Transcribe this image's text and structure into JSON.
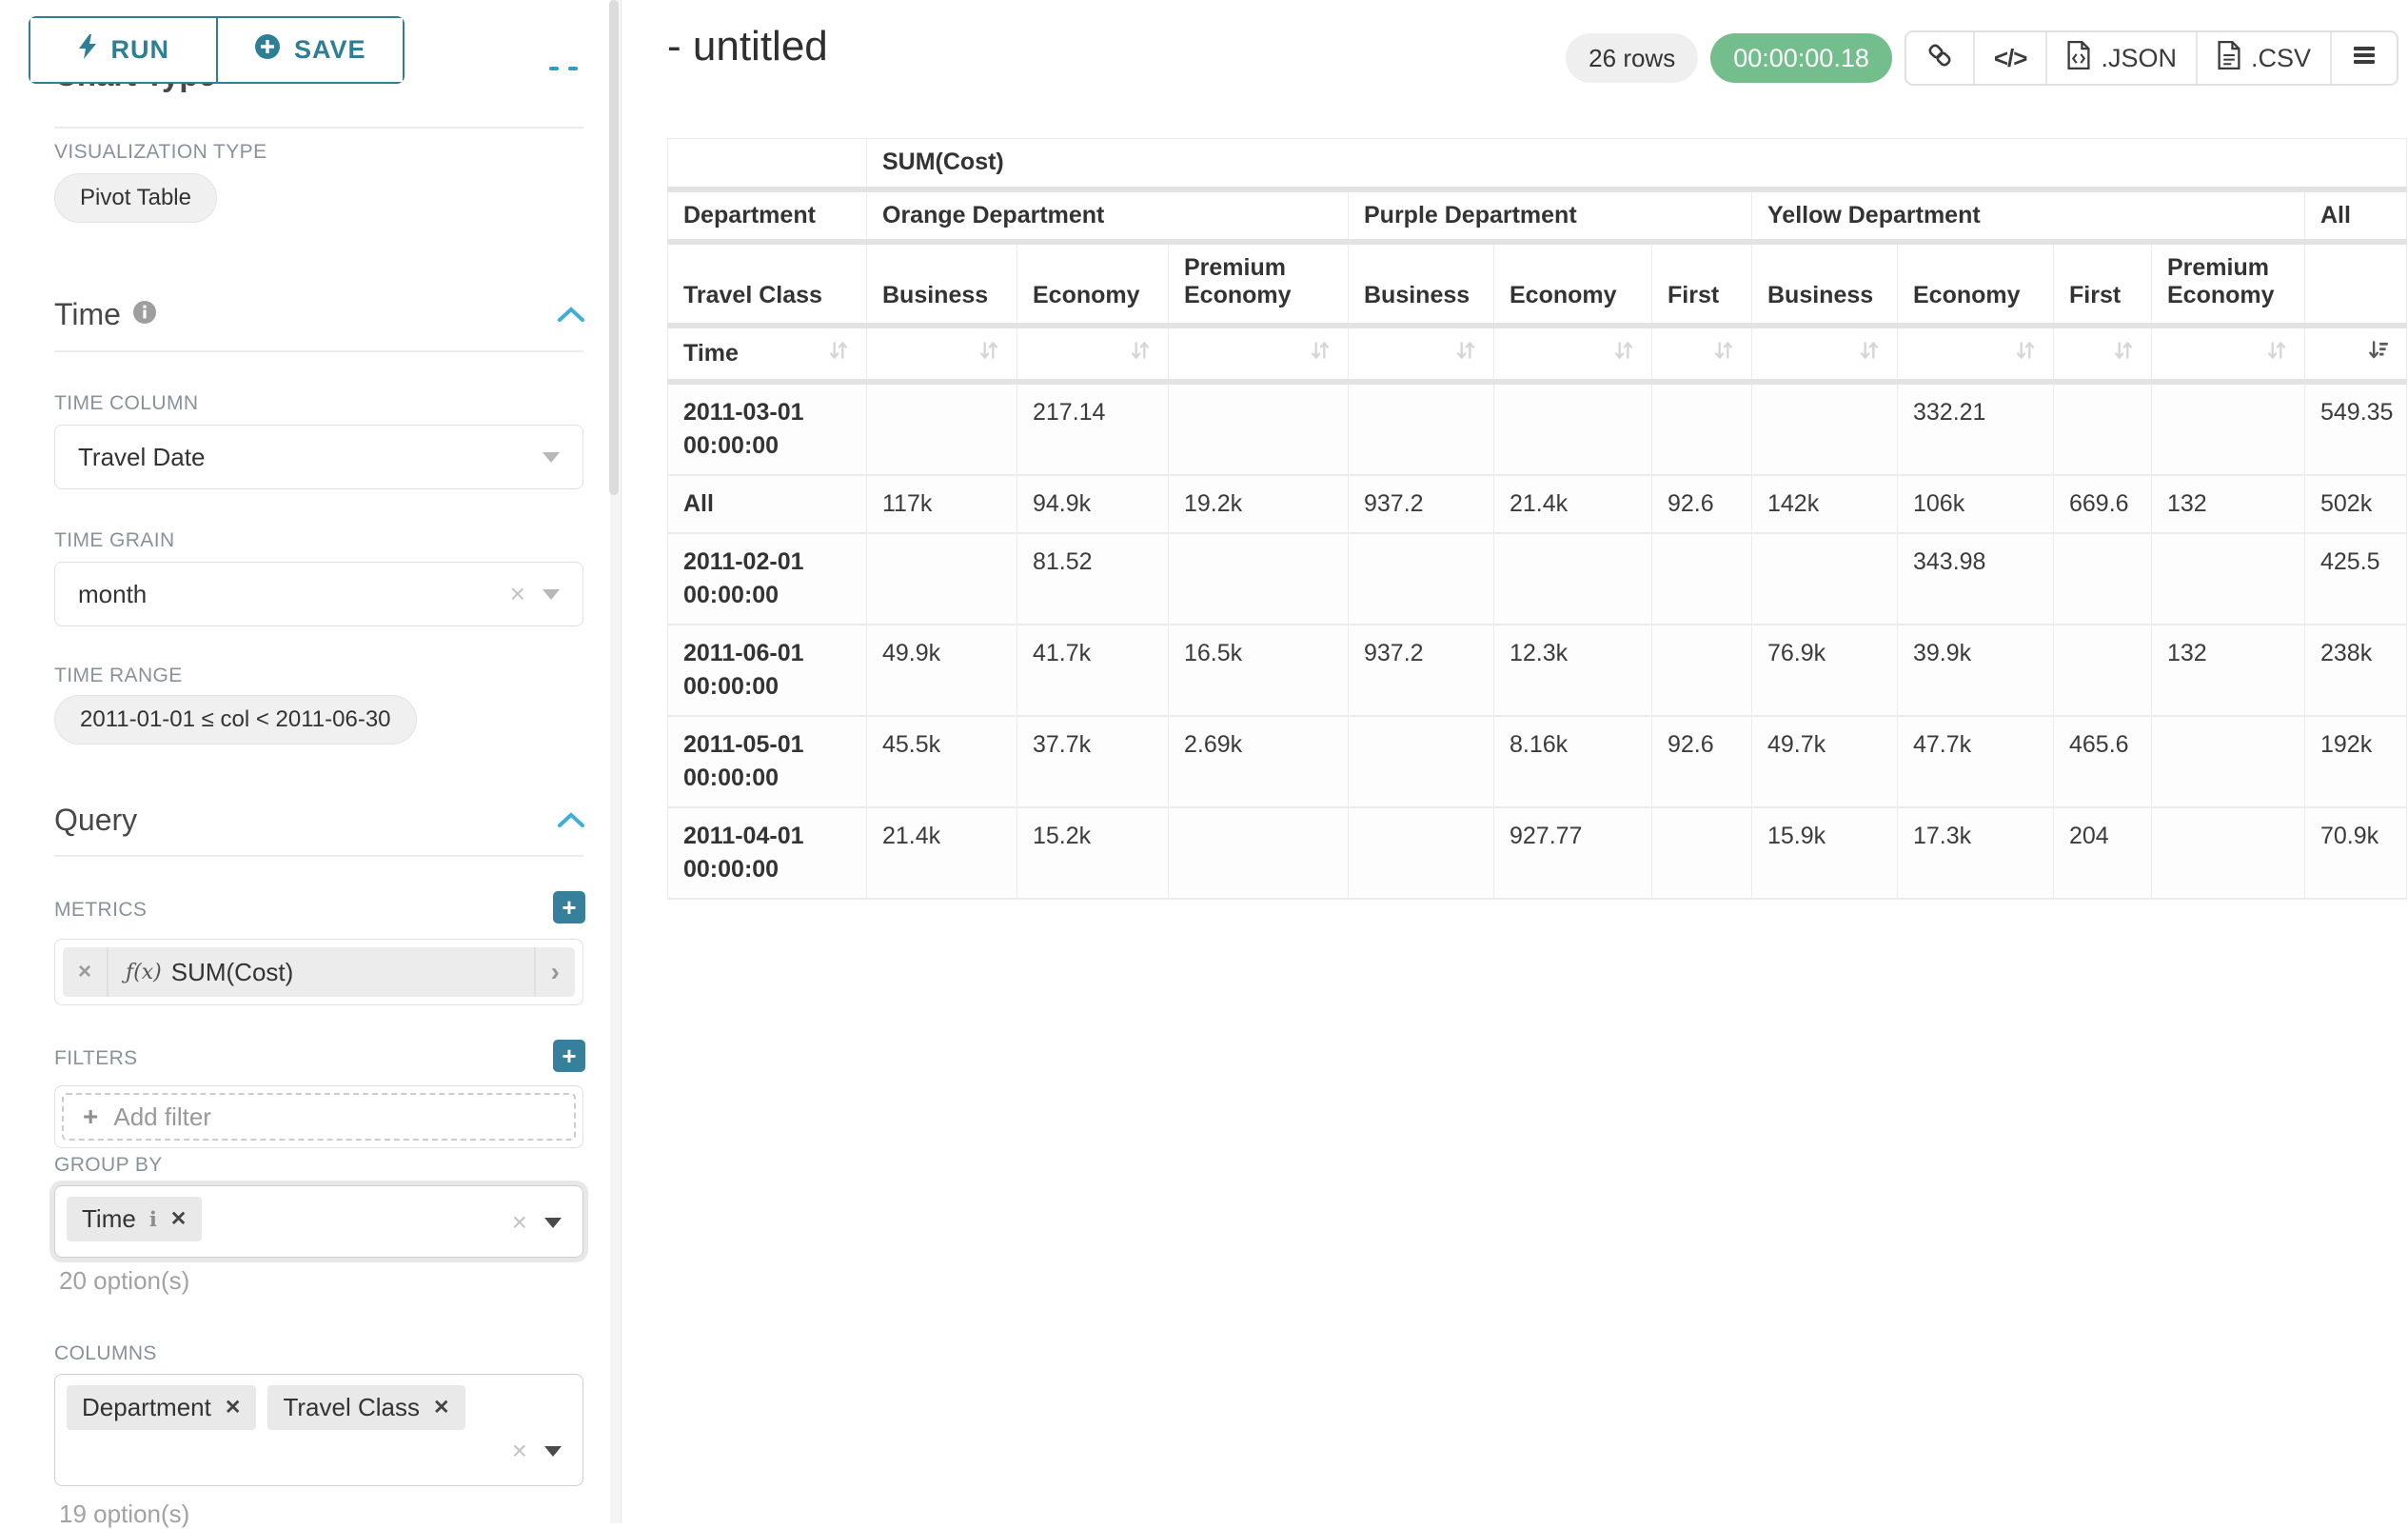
{
  "colors": {
    "accent_teal": "#2e7e96",
    "success_green": "#74bd8d",
    "chevron_blue": "#41aed8",
    "label_gray": "#879399"
  },
  "toolbar": {
    "run_label": "RUN",
    "save_label": "SAVE"
  },
  "sidebar": {
    "chart_type_heading": "Chart Type",
    "viz": {
      "label": "VISUALIZATION TYPE",
      "value": "Pivot Table"
    },
    "time": {
      "title": "Time",
      "time_column": {
        "label": "TIME COLUMN",
        "value": "Travel Date"
      },
      "time_grain": {
        "label": "TIME GRAIN",
        "value": "month"
      },
      "time_range": {
        "label": "TIME RANGE",
        "value": "2011-01-01 ≤ col < 2011-06-30"
      }
    },
    "query": {
      "title": "Query",
      "metrics": {
        "label": "METRICS",
        "fn": "ƒ(x)",
        "value": "SUM(Cost)"
      },
      "filters": {
        "label": "FILTERS",
        "placeholder": "Add filter"
      },
      "group_by": {
        "label": "GROUP BY",
        "chips": [
          "Time"
        ],
        "hint": "20 option(s)"
      },
      "columns": {
        "label": "COLUMNS",
        "chips": [
          "Department",
          "Travel Class"
        ],
        "hint": "19 option(s)"
      }
    }
  },
  "header": {
    "title": "- untitled",
    "row_count": "26 rows",
    "timer": "00:00:00.18",
    "export_json_label": ".JSON",
    "export_csv_label": ".CSV"
  },
  "chart_data": {
    "type": "table",
    "metric_header": "SUM(Cost)",
    "row_dim_label": "Department",
    "row_dim2_label": "Travel Class",
    "time_label": "Time",
    "col_groups": [
      {
        "label": "Orange Department",
        "cols": [
          "Business",
          "Economy",
          "Premium Economy"
        ]
      },
      {
        "label": "Purple Department",
        "cols": [
          "Business",
          "Economy",
          "First"
        ]
      },
      {
        "label": "Yellow Department",
        "cols": [
          "Business",
          "Economy",
          "First",
          "Premium Economy"
        ]
      },
      {
        "label": "All",
        "cols": [
          ""
        ]
      }
    ],
    "sort_active_col": 10,
    "sort_direction": "desc",
    "rows": [
      {
        "key": "2011-03-01 00:00:00",
        "values": [
          "",
          "217.14",
          "",
          "",
          "",
          "",
          "",
          "332.21",
          "",
          "",
          "549.35"
        ]
      },
      {
        "key": "All",
        "values": [
          "117k",
          "94.9k",
          "19.2k",
          "937.2",
          "21.4k",
          "92.6",
          "142k",
          "106k",
          "669.6",
          "132",
          "502k"
        ]
      },
      {
        "key": "2011-02-01 00:00:00",
        "values": [
          "",
          "81.52",
          "",
          "",
          "",
          "",
          "",
          "343.98",
          "",
          "",
          "425.5"
        ]
      },
      {
        "key": "2011-06-01 00:00:00",
        "values": [
          "49.9k",
          "41.7k",
          "16.5k",
          "937.2",
          "12.3k",
          "",
          "76.9k",
          "39.9k",
          "",
          "132",
          "238k"
        ]
      },
      {
        "key": "2011-05-01 00:00:00",
        "values": [
          "45.5k",
          "37.7k",
          "2.69k",
          "",
          "8.16k",
          "92.6",
          "49.7k",
          "47.7k",
          "465.6",
          "",
          "192k"
        ]
      },
      {
        "key": "2011-04-01 00:00:00",
        "values": [
          "21.4k",
          "15.2k",
          "",
          "",
          "927.77",
          "",
          "15.9k",
          "17.3k",
          "204",
          "",
          "70.9k"
        ]
      }
    ]
  }
}
